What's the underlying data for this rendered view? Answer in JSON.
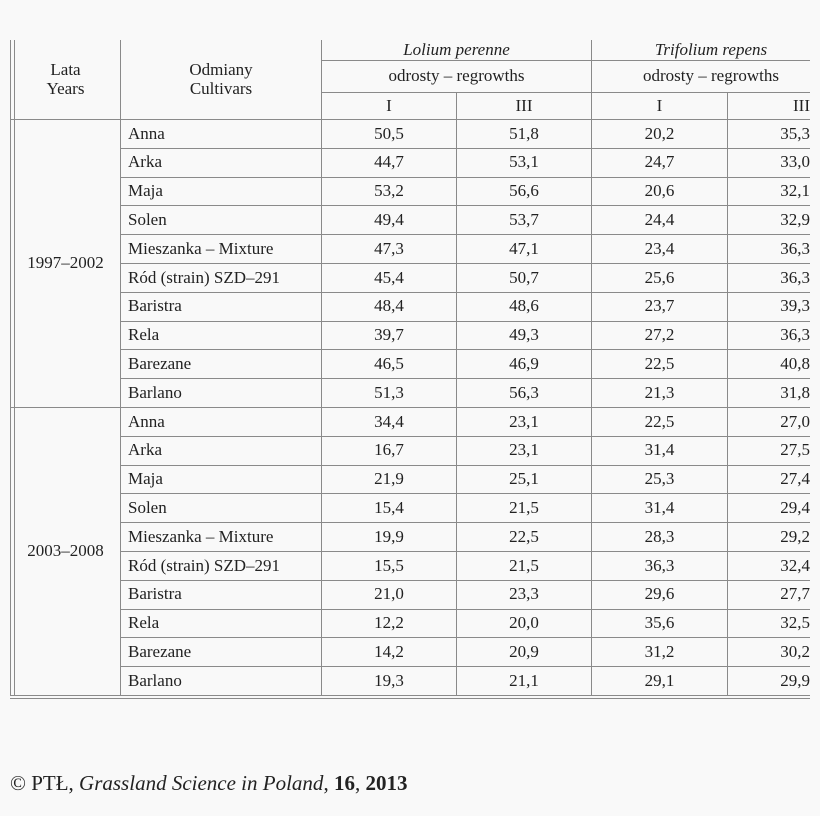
{
  "header": {
    "years_label": [
      "Lata",
      "Years"
    ],
    "cultivars_label": [
      "Odmiany",
      "Cultivars"
    ],
    "species": [
      "Lolium perenne",
      "Trifolium repens"
    ],
    "regrowths_label": "odrosty – regrowths",
    "regrowth_columns": [
      "I",
      "III",
      "I",
      "III"
    ]
  },
  "groups": [
    {
      "years": "1997–2002",
      "rows": [
        {
          "cultivar": "Anna",
          "values": [
            "50,5",
            "51,8",
            "20,2",
            "35,3"
          ]
        },
        {
          "cultivar": "Arka",
          "values": [
            "44,7",
            "53,1",
            "24,7",
            "33,0"
          ]
        },
        {
          "cultivar": "Maja",
          "values": [
            "53,2",
            "56,6",
            "20,6",
            "32,1"
          ]
        },
        {
          "cultivar": "Solen",
          "values": [
            "49,4",
            "53,7",
            "24,4",
            "32,9"
          ]
        },
        {
          "cultivar": "Mieszanka – Mixture",
          "values": [
            "47,3",
            "47,1",
            "23,4",
            "36,3"
          ]
        },
        {
          "cultivar": "Ród (strain) SZD–291",
          "values": [
            "45,4",
            "50,7",
            "25,6",
            "36,3"
          ]
        },
        {
          "cultivar": "Baristra",
          "values": [
            "48,4",
            "48,6",
            "23,7",
            "39,3"
          ]
        },
        {
          "cultivar": "Rela",
          "values": [
            "39,7",
            "49,3",
            "27,2",
            "36,3"
          ]
        },
        {
          "cultivar": "Barezane",
          "values": [
            "46,5",
            "46,9",
            "22,5",
            "40,8"
          ]
        },
        {
          "cultivar": "Barlano",
          "values": [
            "51,3",
            "56,3",
            "21,3",
            "31,8"
          ]
        }
      ]
    },
    {
      "years": "2003–2008",
      "rows": [
        {
          "cultivar": "Anna",
          "values": [
            "34,4",
            "23,1",
            "22,5",
            "27,0"
          ]
        },
        {
          "cultivar": "Arka",
          "values": [
            "16,7",
            "23,1",
            "31,4",
            "27,5"
          ]
        },
        {
          "cultivar": "Maja",
          "values": [
            "21,9",
            "25,1",
            "25,3",
            "27,4"
          ]
        },
        {
          "cultivar": "Solen",
          "values": [
            "15,4",
            "21,5",
            "31,4",
            "29,4"
          ]
        },
        {
          "cultivar": "Mieszanka – Mixture",
          "values": [
            "19,9",
            "22,5",
            "28,3",
            "29,2"
          ]
        },
        {
          "cultivar": "Ród (strain) SZD–291",
          "values": [
            "15,5",
            "21,5",
            "36,3",
            "32,4"
          ]
        },
        {
          "cultivar": "Baristra",
          "values": [
            "21,0",
            "23,3",
            "29,6",
            "27,7"
          ]
        },
        {
          "cultivar": "Rela",
          "values": [
            "12,2",
            "20,0",
            "35,6",
            "32,5"
          ]
        },
        {
          "cultivar": "Barezane",
          "values": [
            "14,2",
            "20,9",
            "31,2",
            "30,2"
          ]
        },
        {
          "cultivar": "Barlano",
          "values": [
            "19,3",
            "21,1",
            "29,1",
            "29,9"
          ]
        }
      ]
    }
  ],
  "footer": {
    "copyright": "© PTŁ, ",
    "journal": "Grassland Science in Poland",
    "sep1": ", ",
    "volume": "16",
    "sep2": ", ",
    "year": "2013"
  }
}
